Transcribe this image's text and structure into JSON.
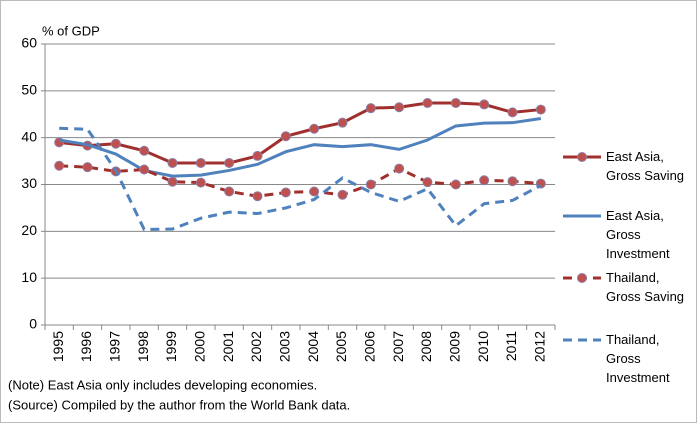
{
  "chart_data": {
    "type": "line",
    "y_label": "% of GDP",
    "categories": [
      "1995",
      "1996",
      "1997",
      "1998",
      "1999",
      "2000",
      "2001",
      "2002",
      "2003",
      "2004",
      "2005",
      "2006",
      "2007",
      "2008",
      "2009",
      "2010",
      "2011",
      "2012"
    ],
    "series": [
      {
        "name": "East Asia, Gross Saving",
        "color": "#a0302e",
        "style": "solid",
        "marker": "circle",
        "values": [
          39.0,
          38.3,
          38.7,
          37.2,
          34.6,
          34.6,
          34.6,
          36.1,
          40.3,
          41.9,
          43.2,
          46.3,
          46.5,
          47.4,
          47.4,
          47.1,
          45.4,
          46.0
        ]
      },
      {
        "name": "East Asia, Gross Investment",
        "color": "#4f81bd",
        "style": "solid",
        "marker": "none",
        "values": [
          39.5,
          38.5,
          36.5,
          33.0,
          31.8,
          32.0,
          33.0,
          34.3,
          37.0,
          38.5,
          38.1,
          38.5,
          37.5,
          39.5,
          42.5,
          43.1,
          43.2,
          44.1
        ]
      },
      {
        "name": "Thailand, Gross Saving",
        "color": "#a0302e",
        "style": "dashed",
        "marker": "circle",
        "values": [
          34.0,
          33.7,
          32.8,
          33.2,
          30.6,
          30.4,
          28.5,
          27.5,
          28.3,
          28.5,
          27.8,
          30.0,
          33.4,
          30.5,
          30.0,
          30.9,
          30.7,
          30.2
        ]
      },
      {
        "name": "Thailand, Gross Investment",
        "color": "#4f81bd",
        "style": "dashed",
        "marker": "none",
        "values": [
          42.0,
          41.8,
          33.0,
          20.4,
          20.5,
          22.8,
          24.1,
          23.8,
          25.0,
          26.8,
          31.4,
          28.3,
          26.4,
          29.1,
          21.2,
          25.9,
          26.6,
          29.8
        ]
      }
    ],
    "ylim": [
      0,
      60
    ],
    "yticks": [
      0,
      10,
      20,
      30,
      40,
      50,
      60
    ],
    "grid": true,
    "legend": "right",
    "notes": [
      "(Note) East Asia only includes developing economies.",
      "(Source) Compiled by the author from the World Bank data."
    ]
  }
}
